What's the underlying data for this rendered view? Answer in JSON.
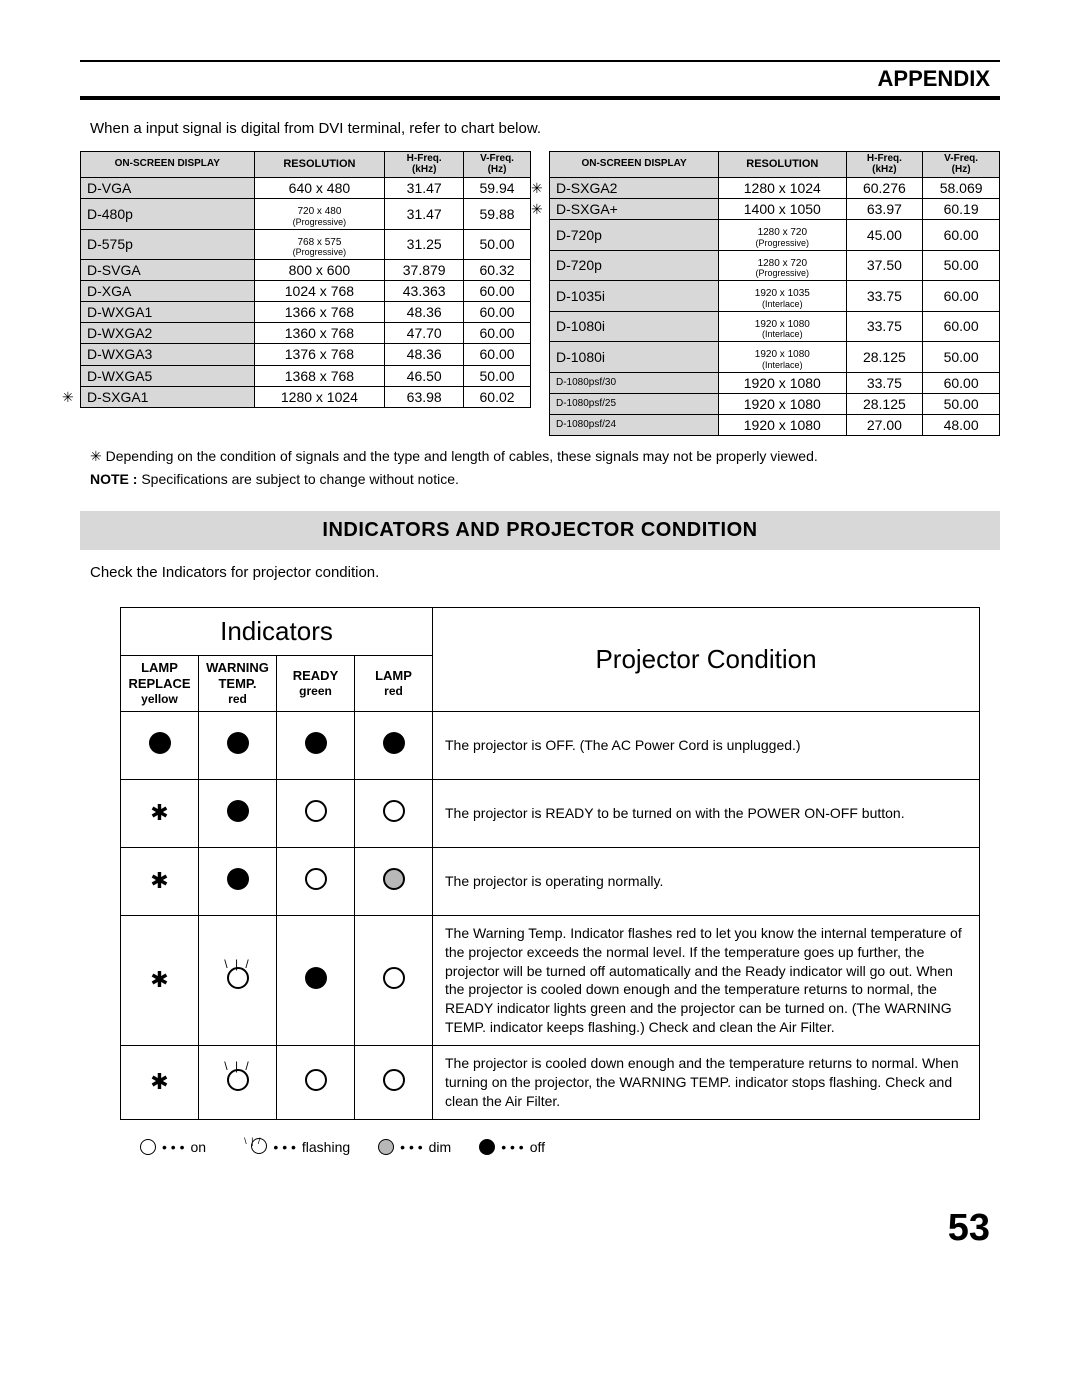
{
  "header": {
    "title": "APPENDIX"
  },
  "intro": "When a input signal is digital from DVI terminal, refer to chart below.",
  "sig_headers": {
    "display": "ON-SCREEN DISPLAY",
    "resolution": "RESOLUTION",
    "hfreq": "H-Freq.\n(kHz)",
    "vfreq": "V-Freq.\n(Hz)"
  },
  "table_left": [
    {
      "d": "D-VGA",
      "r": "640 x 480",
      "h": "31.47",
      "v": "59.94",
      "star": false
    },
    {
      "d": "D-480p",
      "r": "720 x 480",
      "sub": "(Progressive)",
      "h": "31.47",
      "v": "59.88",
      "star": false
    },
    {
      "d": "D-575p",
      "r": "768 x 575",
      "sub": "(Progressive)",
      "h": "31.25",
      "v": "50.00",
      "star": false
    },
    {
      "d": "D-SVGA",
      "r": "800 x 600",
      "h": "37.879",
      "v": "60.32",
      "star": false
    },
    {
      "d": "D-XGA",
      "r": "1024 x 768",
      "h": "43.363",
      "v": "60.00",
      "star": false
    },
    {
      "d": "D-WXGA1",
      "r": "1366 x 768",
      "h": "48.36",
      "v": "60.00",
      "star": false
    },
    {
      "d": "D-WXGA2",
      "r": "1360 x 768",
      "h": "47.70",
      "v": "60.00",
      "star": false
    },
    {
      "d": "D-WXGA3",
      "r": "1376 x 768",
      "h": "48.36",
      "v": "60.00",
      "star": false
    },
    {
      "d": "D-WXGA5",
      "r": "1368 x 768",
      "h": "46.50",
      "v": "50.00",
      "star": false
    },
    {
      "d": "D-SXGA1",
      "r": "1280 x 1024",
      "h": "63.98",
      "v": "60.02",
      "star": true
    }
  ],
  "table_right": [
    {
      "d": "D-SXGA2",
      "r": "1280 x 1024",
      "h": "60.276",
      "v": "58.069",
      "star": true
    },
    {
      "d": "D-SXGA+",
      "r": "1400 x 1050",
      "h": "63.97",
      "v": "60.19",
      "star": true
    },
    {
      "d": "D-720p",
      "r": "1280 x 720",
      "sub": "(Progressive)",
      "h": "45.00",
      "v": "60.00",
      "star": false
    },
    {
      "d": "D-720p",
      "r": "1280 x 720",
      "sub": "(Progressive)",
      "h": "37.50",
      "v": "50.00",
      "star": false
    },
    {
      "d": "D-1035i",
      "r": "1920 x 1035",
      "sub": "(Interlace)",
      "h": "33.75",
      "v": "60.00",
      "star": false
    },
    {
      "d": "D-1080i",
      "r": "1920 x 1080",
      "sub": "(Interlace)",
      "h": "33.75",
      "v": "60.00",
      "star": false
    },
    {
      "d": "D-1080i",
      "r": "1920 x 1080",
      "sub": "(Interlace)",
      "h": "28.125",
      "v": "50.00",
      "star": false
    },
    {
      "d": "D-1080psf/30",
      "small": true,
      "r": "1920 x 1080",
      "h": "33.75",
      "v": "60.00",
      "star": false
    },
    {
      "d": "D-1080psf/25",
      "small": true,
      "r": "1920 x 1080",
      "h": "28.125",
      "v": "50.00",
      "star": false
    },
    {
      "d": "D-1080psf/24",
      "small": true,
      "r": "1920 x 1080",
      "h": "27.00",
      "v": "48.00",
      "star": false
    }
  ],
  "notes": {
    "star_note": "Depending on the condition of signals and the type and length of cables, these signals may not be properly viewed.",
    "spec_note_label": "NOTE :",
    "spec_note": " Specifications are subject to change without notice."
  },
  "section": {
    "title": "INDICATORS AND PROJECTOR CONDITION",
    "check": "Check the Indicators for projector condition."
  },
  "indic_headers": {
    "indicators": "Indicators",
    "projector_condition": "Projector Condition",
    "lamp_replace": "LAMP REPLACE",
    "lamp_replace_color": "yellow",
    "warning_temp": "WARNING TEMP.",
    "warning_temp_color": "red",
    "ready": "READY",
    "ready_color": "green",
    "lamp": "LAMP",
    "lamp_color": "red"
  },
  "indic_rows": [
    {
      "cells": [
        "filled",
        "filled",
        "filled",
        "filled"
      ],
      "cond": "The projector is OFF.  (The AC Power Cord is unplugged.)"
    },
    {
      "cells": [
        "star",
        "filled",
        "open",
        "open"
      ],
      "cond": "The projector is READY to be turned on with the POWER ON-OFF button."
    },
    {
      "cells": [
        "star",
        "filled",
        "open",
        "dim"
      ],
      "cond": "The projector is operating normally."
    },
    {
      "cells": [
        "star",
        "flash",
        "filled",
        "open"
      ],
      "cond": "The Warning Temp. Indicator flashes red to let you know the internal temperature of the projector exceeds the normal level. If the temperature goes up further, the projector will be turned off automatically and the Ready indicator will go out.  When  the projector is cooled down enough and the temperature returns to normal, the READY indicator lights green and the projector can be turned on.  (The WARNING TEMP. indicator keeps flashing.)  Check and clean the Air Filter."
    },
    {
      "cells": [
        "star",
        "flash",
        "open",
        "open"
      ],
      "cond": "The projector is cooled down enough and the temperature returns to normal.  When turning on the projector, the WARNING TEMP. indicator stops flashing.  Check and clean the Air Filter."
    }
  ],
  "legend": {
    "on": "on",
    "flashing": "flashing",
    "dim": "dim",
    "off": "off"
  },
  "page_number": "53"
}
